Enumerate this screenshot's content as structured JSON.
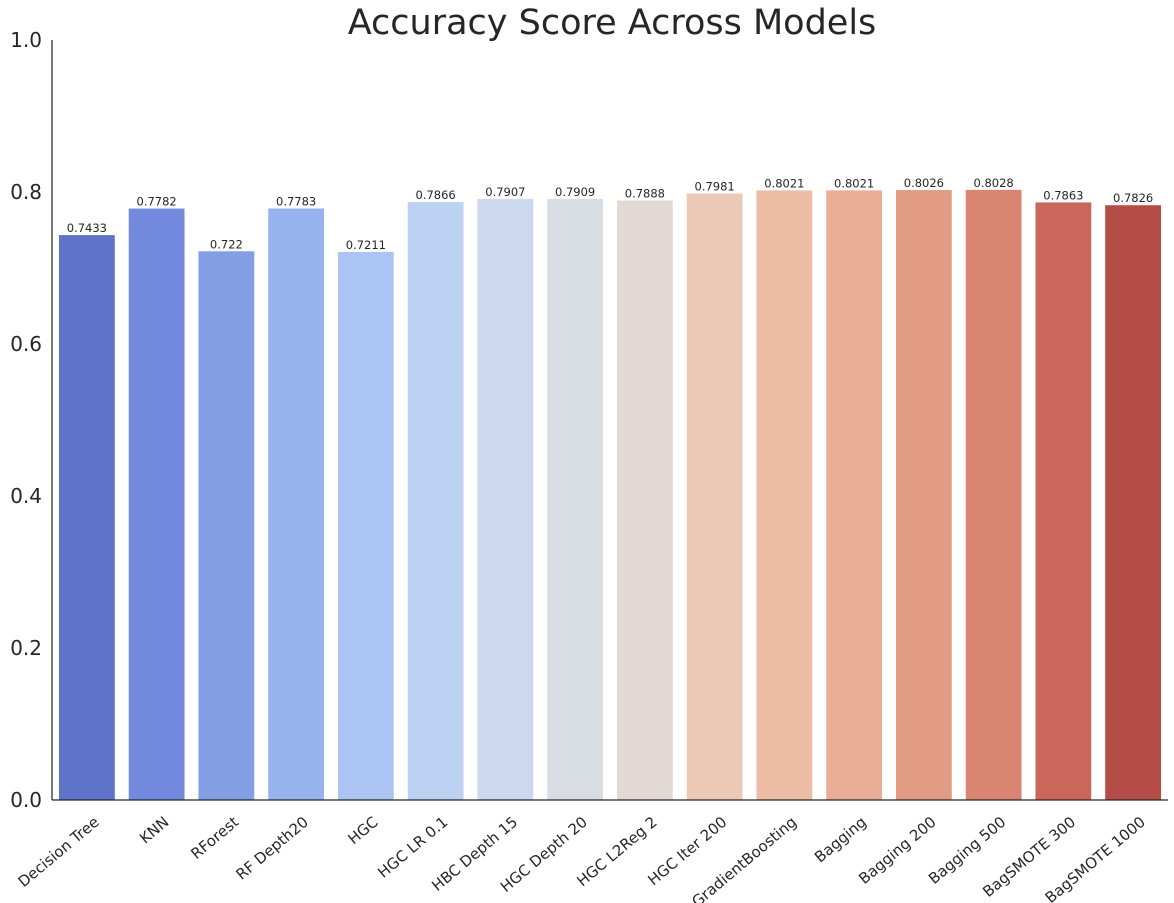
{
  "chart_data": {
    "type": "bar",
    "title": "Accuracy Score Across Models",
    "xlabel": "",
    "ylabel": "",
    "ylim": [
      0,
      1.0
    ],
    "yticks": [
      "0.0",
      "0.2",
      "0.4",
      "0.6",
      "0.8",
      "1.0"
    ],
    "ytick_values": [
      0,
      0.2,
      0.4,
      0.6,
      0.8,
      1.0
    ],
    "grid": false,
    "legend": "none",
    "palette": "coolwarm",
    "categories": [
      "Decision Tree",
      "KNN",
      "RForest",
      "RF Depth20",
      "HGC",
      "HGC LR 0.1",
      "HBC Depth 15",
      "HGC Depth 20",
      "HGC L2Reg 2",
      "HGC Iter 200",
      "GradientBoosting",
      "Bagging",
      "Bagging 200",
      "Bagging 500",
      "BagSMOTE 300",
      "BagSMOTE 1000"
    ],
    "values": [
      0.7433,
      0.7782,
      0.722,
      0.7783,
      0.7211,
      0.7866,
      0.7907,
      0.7909,
      0.7888,
      0.7981,
      0.8021,
      0.8021,
      0.8026,
      0.8028,
      0.7863,
      0.7826
    ],
    "value_labels": [
      "0.7433",
      "0.7782",
      "0.722",
      "0.7783",
      "0.7211",
      "0.7866",
      "0.7907",
      "0.7909",
      "0.7888",
      "0.7981",
      "0.8021",
      "0.8021",
      "0.8026",
      "0.8028",
      "0.7863",
      "0.7826"
    ],
    "colors": [
      "#5f73c8",
      "#7389dd",
      "#849ee6",
      "#97b3ee",
      "#abc4f3",
      "#bdd1f3",
      "#cbd8ee",
      "#d8dce3",
      "#e2d9d4",
      "#ecc9b7",
      "#edbca5",
      "#eaae96",
      "#e29c84",
      "#d98572",
      "#c9675a",
      "#b64c47"
    ]
  }
}
